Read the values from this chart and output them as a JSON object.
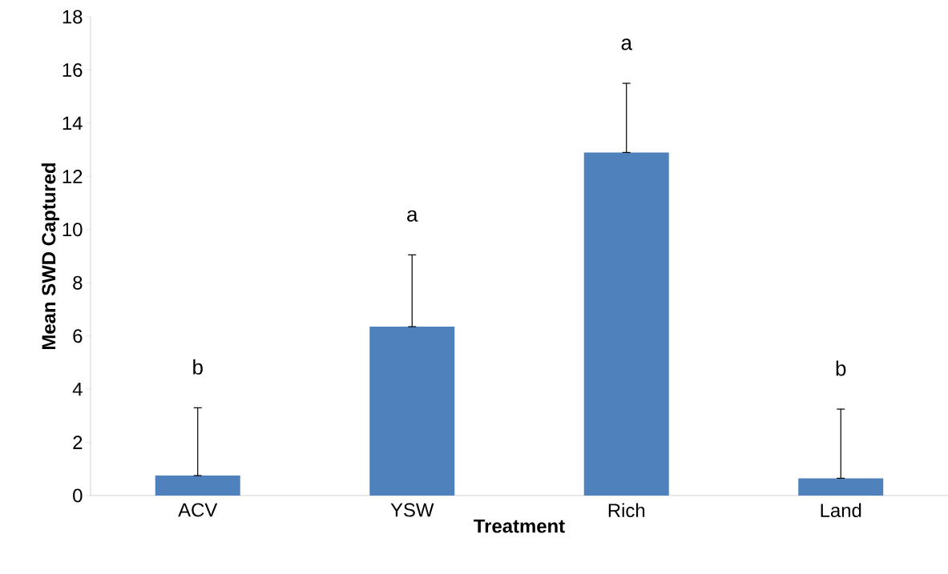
{
  "chart_data": {
    "type": "bar",
    "xlabel": "Treatment",
    "ylabel": "Mean SWD Captured",
    "categories": [
      "ACV",
      "YSW",
      "Rich",
      "Land"
    ],
    "values": [
      0.75,
      6.35,
      12.9,
      0.65
    ],
    "errors": [
      [
        0.75,
        3.3
      ],
      [
        6.35,
        9.05
      ],
      [
        12.9,
        15.5
      ],
      [
        0.65,
        3.25
      ]
    ],
    "color": "#4f81bd",
    "ylim": [
      0,
      18
    ],
    "yticks": [
      0,
      2,
      4,
      6,
      8,
      10,
      12,
      14,
      16,
      18
    ],
    "grid": false,
    "annotations": [
      "b",
      "a",
      "a",
      "b"
    ]
  }
}
